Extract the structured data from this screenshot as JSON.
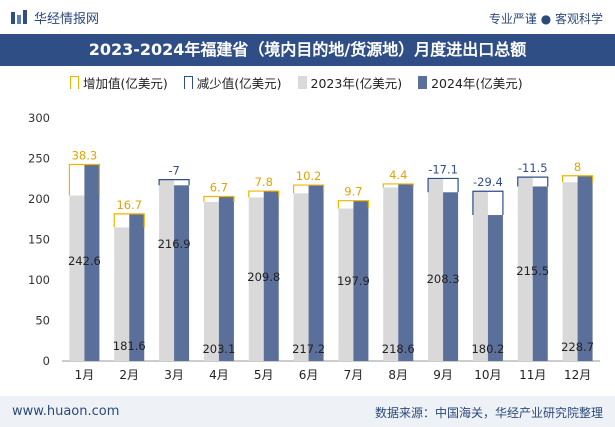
{
  "brand": {
    "name": "华经情报网",
    "tagline": "专业严谨 ● 客观科学"
  },
  "title": "2023-2024年福建省（境内目的地/货源地）月度进出口总额",
  "legend": {
    "increase": "增加值(亿美元)",
    "decrease": "减少值(亿美元)",
    "y2023": "2023年(亿美元)",
    "y2024": "2024年(亿美元)"
  },
  "footer": {
    "site": "www.huaon.com",
    "source": "数据来源：中国海关，华经产业研究院整理"
  },
  "colors": {
    "bar2023": "#d9d9d9",
    "bar2024": "#5b6f9b",
    "increase": "#f0b400",
    "decrease": "#2f4e85",
    "title_bg": "#2f4e85"
  },
  "chart_data": {
    "type": "bar",
    "categories": [
      "1月",
      "2月",
      "3月",
      "4月",
      "5月",
      "6月",
      "7月",
      "8月",
      "9月",
      "10月",
      "11月",
      "12月"
    ],
    "series": [
      {
        "name": "2023年(亿美元)",
        "values": [
          204.3,
          164.9,
          223.9,
          196.4,
          202.0,
          207.0,
          188.2,
          214.2,
          225.4,
          209.6,
          227.0,
          220.7
        ]
      },
      {
        "name": "2024年(亿美元)",
        "values": [
          242.6,
          181.6,
          216.9,
          203.1,
          209.8,
          217.2,
          197.9,
          218.6,
          208.3,
          180.2,
          215.5,
          228.7
        ]
      }
    ],
    "change_labels": [
      "38.3",
      "16.7",
      "-7",
      "6.7",
      "7.8",
      "10.2",
      "9.7",
      "4.4",
      "-17.1",
      "-29.4",
      "-11.5",
      "8"
    ],
    "value_labels_2024": [
      "242.6",
      "181.6",
      "216.9",
      "203.1",
      "209.8",
      "217.2",
      "197.9",
      "218.6",
      "208.3",
      "180.2",
      "215.5",
      "228.7"
    ],
    "y_ticks": [
      "0",
      "50",
      "100",
      "150",
      "200",
      "250",
      "300"
    ],
    "ylim": [
      0,
      300
    ],
    "grid": false,
    "legend_position": "top"
  }
}
